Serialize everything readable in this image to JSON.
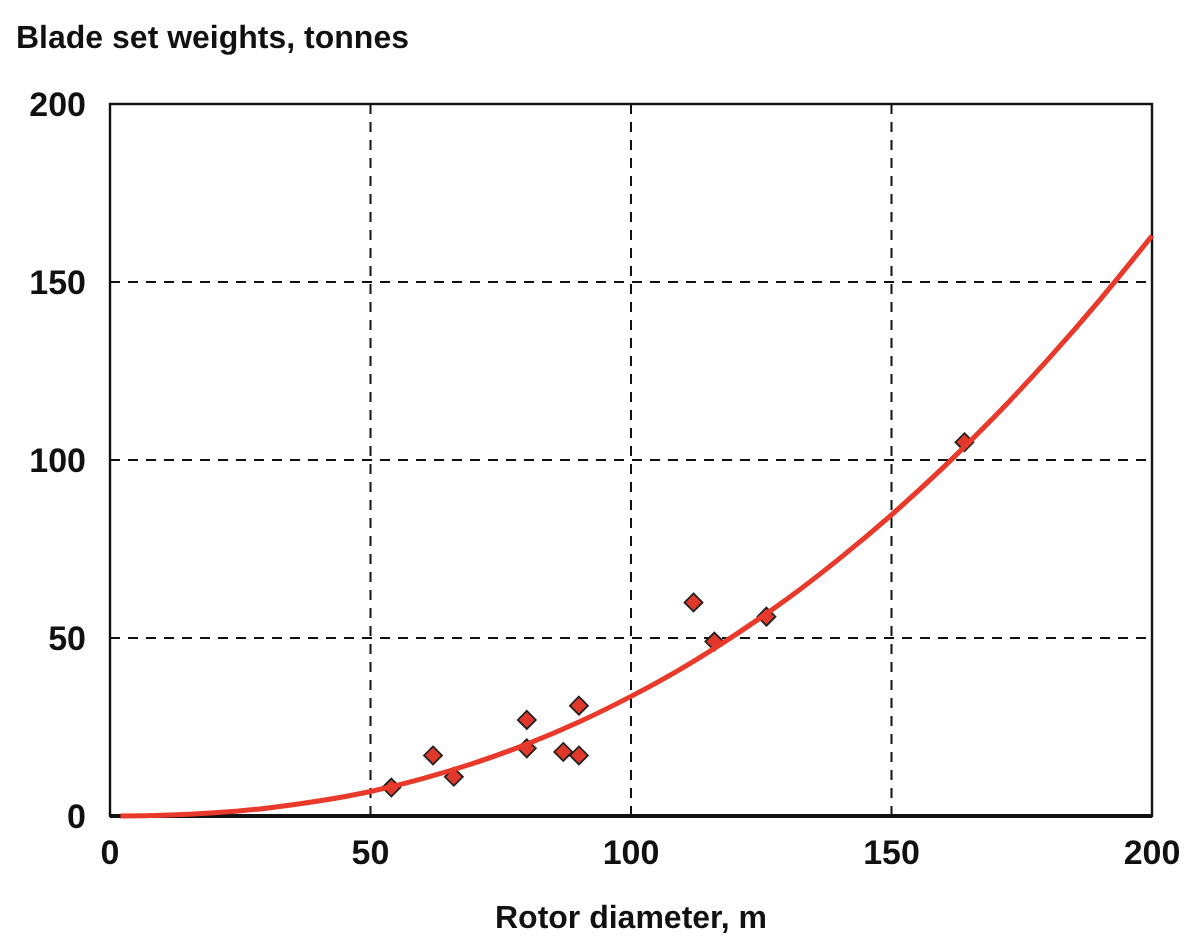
{
  "chart_data": {
    "type": "scatter",
    "title": "Blade set weights, tonnes",
    "xlabel": "Rotor diameter, m",
    "xlim": [
      0,
      200
    ],
    "ylim": [
      0,
      200
    ],
    "xticks": [
      0,
      50,
      100,
      150,
      200
    ],
    "yticks": [
      0,
      50,
      100,
      150,
      200
    ],
    "grid": true,
    "series": [
      {
        "color": "#e0392b",
        "marker": "diamond",
        "x": [
          54,
          62,
          66,
          80,
          80,
          87,
          90,
          90,
          112,
          116,
          126,
          164
        ],
        "values": [
          8,
          17,
          11,
          27,
          19,
          18,
          31,
          17,
          60,
          49,
          56,
          105
        ]
      },
      {
        "type": "line",
        "color": "#e8392a",
        "marker": "none",
        "x": [
          2,
          10,
          20,
          30,
          40,
          50,
          60,
          70,
          80,
          90,
          100,
          110,
          120,
          130,
          140,
          150,
          160,
          170,
          180,
          190,
          200
        ],
        "values": [
          0,
          0.2,
          0.9,
          2.2,
          4.2,
          6.9,
          10.5,
          14.9,
          20.2,
          26.4,
          33.6,
          41.7,
          50.9,
          61,
          72.3,
          84.6,
          98,
          112.5,
          128.2,
          145,
          163
        ]
      }
    ]
  }
}
